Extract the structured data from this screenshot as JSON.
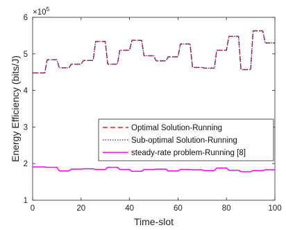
{
  "chart_data": {
    "type": "line",
    "xlabel": "Time-slot",
    "ylabel": "Energy Efficiency (bits/J)",
    "xlim": [
      0,
      100
    ],
    "ylim": [
      100000,
      600000
    ],
    "xticks": [
      0,
      20,
      40,
      60,
      80,
      100
    ],
    "yticks": [
      100000,
      200000,
      300000,
      400000,
      500000,
      600000
    ],
    "ytick_labels": [
      "1",
      "2",
      "3",
      "4",
      "5",
      "6"
    ],
    "y_exponent_base": "×10",
    "y_exponent_power": "5",
    "grid": false,
    "legend_position": "lower-right",
    "x": [
      1,
      2,
      3,
      4,
      5,
      6,
      7,
      8,
      9,
      10,
      11,
      12,
      13,
      14,
      15,
      16,
      17,
      18,
      19,
      20,
      21,
      22,
      23,
      24,
      25,
      26,
      27,
      28,
      29,
      30,
      31,
      32,
      33,
      34,
      35,
      36,
      37,
      38,
      39,
      40,
      41,
      42,
      43,
      44,
      45,
      46,
      47,
      48,
      49,
      50,
      51,
      52,
      53,
      54,
      55,
      56,
      57,
      58,
      59,
      60,
      61,
      62,
      63,
      64,
      65,
      66,
      67,
      68,
      69,
      70,
      71,
      72,
      73,
      74,
      75,
      76,
      77,
      78,
      79,
      80,
      81,
      82,
      83,
      84,
      85,
      86,
      87,
      88,
      89,
      90,
      91,
      92,
      93,
      94,
      95,
      96,
      97,
      98,
      99,
      100
    ],
    "series": [
      {
        "name": "Optimal Solution-Running",
        "color": "#d62728",
        "line_style": "dashed",
        "values": [
          448000,
          448000,
          448000,
          448000,
          448000,
          484000,
          484000,
          484000,
          484000,
          484000,
          462000,
          462000,
          462000,
          462000,
          462000,
          472000,
          472000,
          472000,
          472000,
          472000,
          482000,
          482000,
          482000,
          482000,
          482000,
          534000,
          534000,
          534000,
          534000,
          534000,
          472000,
          472000,
          472000,
          472000,
          472000,
          510000,
          510000,
          510000,
          510000,
          510000,
          537000,
          537000,
          537000,
          537000,
          537000,
          495000,
          495000,
          495000,
          495000,
          495000,
          481000,
          481000,
          481000,
          481000,
          481000,
          492000,
          492000,
          492000,
          492000,
          492000,
          527000,
          527000,
          527000,
          527000,
          527000,
          463000,
          463000,
          463000,
          463000,
          463000,
          461000,
          461000,
          461000,
          461000,
          461000,
          510000,
          510000,
          510000,
          510000,
          510000,
          548000,
          548000,
          548000,
          548000,
          548000,
          457000,
          457000,
          457000,
          457000,
          457000,
          563000,
          563000,
          563000,
          563000,
          563000,
          530000,
          530000,
          530000,
          530000,
          530000
        ]
      },
      {
        "name": "Sub-optimal Solution-Running",
        "color": "#1f2aa0",
        "line_style": "dotted",
        "values": [
          448000,
          448000,
          448000,
          448000,
          448000,
          484000,
          484000,
          484000,
          484000,
          484000,
          462000,
          462000,
          462000,
          462000,
          462000,
          472000,
          472000,
          472000,
          472000,
          472000,
          482000,
          482000,
          482000,
          482000,
          482000,
          534000,
          534000,
          534000,
          534000,
          534000,
          472000,
          472000,
          472000,
          472000,
          472000,
          510000,
          510000,
          510000,
          510000,
          510000,
          537000,
          537000,
          537000,
          537000,
          537000,
          495000,
          495000,
          495000,
          495000,
          495000,
          481000,
          481000,
          481000,
          481000,
          481000,
          492000,
          492000,
          492000,
          492000,
          492000,
          527000,
          527000,
          527000,
          527000,
          527000,
          463000,
          463000,
          463000,
          463000,
          463000,
          461000,
          461000,
          461000,
          461000,
          461000,
          510000,
          510000,
          510000,
          510000,
          510000,
          548000,
          548000,
          548000,
          548000,
          548000,
          457000,
          457000,
          457000,
          457000,
          457000,
          563000,
          563000,
          563000,
          563000,
          563000,
          530000,
          530000,
          530000,
          530000,
          530000
        ]
      },
      {
        "name": "steady-rate problem-Running [8]",
        "color": "#ff00ff",
        "line_style": "solid",
        "values": [
          191000,
          191000,
          191000,
          191000,
          191000,
          190000,
          190000,
          190000,
          190000,
          190000,
          180000,
          180000,
          180000,
          180000,
          180000,
          185000,
          185000,
          185000,
          185000,
          185000,
          186000,
          186000,
          186000,
          186000,
          186000,
          184000,
          184000,
          184000,
          184000,
          184000,
          190000,
          190000,
          190000,
          190000,
          190000,
          184000,
          184000,
          184000,
          184000,
          184000,
          179000,
          179000,
          179000,
          179000,
          179000,
          184000,
          184000,
          184000,
          184000,
          184000,
          185000,
          185000,
          185000,
          185000,
          185000,
          180000,
          180000,
          180000,
          180000,
          180000,
          184000,
          184000,
          184000,
          184000,
          184000,
          183000,
          183000,
          183000,
          183000,
          183000,
          181000,
          181000,
          181000,
          181000,
          181000,
          188000,
          188000,
          188000,
          188000,
          188000,
          182000,
          182000,
          182000,
          182000,
          182000,
          178000,
          178000,
          178000,
          178000,
          178000,
          181000,
          181000,
          181000,
          181000,
          181000,
          183000,
          183000,
          183000,
          183000,
          183000
        ]
      }
    ]
  }
}
